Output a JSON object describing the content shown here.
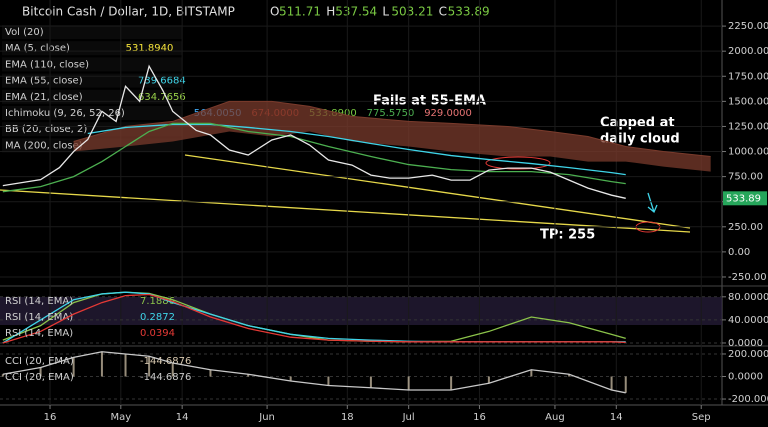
{
  "header": {
    "title": "Bitcoin Cash / Dollar, 1D, BITSTAMP",
    "ohlc": [
      {
        "label": "O",
        "value": 511.71
      },
      {
        "label": "H",
        "value": 537.54
      },
      {
        "label": "L",
        "value": 503.21
      },
      {
        "label": "C",
        "value": 533.89
      }
    ]
  },
  "legend": [
    {
      "label": "Vol (20)",
      "readouts": []
    },
    {
      "label": "MA (5, close)",
      "readouts": [
        {
          "text": "531.8940",
          "color": "#f5e33a"
        }
      ]
    },
    {
      "label": "EMA (110, close)",
      "readouts": []
    },
    {
      "label": "EMA (55, close)",
      "readouts": [
        {
          "text": "739.6684",
          "color": "#3fd4e8"
        }
      ]
    },
    {
      "label": "EMA (21, close)",
      "readouts": [
        {
          "text": "634.7656",
          "color": "#9ad24a"
        }
      ]
    },
    {
      "label": "Ichimoku (9, 26, 52, 26)",
      "readouts": [
        {
          "text": "564.0050",
          "color": "#3fa9f5"
        },
        {
          "text": "674.0000",
          "color": "#c0392b"
        },
        {
          "text": "533.8900",
          "color": "#7ac943"
        },
        {
          "text": "775.5750",
          "color": "#4caf50"
        },
        {
          "text": "929.0000",
          "color": "#e57373"
        }
      ]
    },
    {
      "label": "BB (20, close, 2)",
      "readouts": []
    },
    {
      "label": "MA (200, close)",
      "readouts": []
    }
  ],
  "annotations": [
    "Fails at 55-EMA",
    "Capped at",
    "daily cloud",
    "TP: 255"
  ],
  "chart_data": [
    {
      "type": "line",
      "grid": true,
      "xlim": [
        -10.6,
        142.4
      ],
      "ylim": [
        -330,
        2510
      ],
      "xticks": [
        {
          "value": 0,
          "label": "16"
        },
        {
          "value": 15,
          "label": "May"
        },
        {
          "value": 28,
          "label": "14"
        },
        {
          "value": 46,
          "label": "Jun"
        },
        {
          "value": 63,
          "label": "18"
        },
        {
          "value": 76,
          "label": "Jul"
        },
        {
          "value": 91,
          "label": "16"
        },
        {
          "value": 107,
          "label": "Aug"
        },
        {
          "value": 120,
          "label": "14"
        },
        {
          "value": 138,
          "label": "Sep"
        }
      ],
      "yticks": [
        {
          "value": 2250,
          "label": "2250.00"
        },
        {
          "value": 2000,
          "label": "2000.00"
        },
        {
          "value": 1750,
          "label": "1750.00"
        },
        {
          "value": 1500,
          "label": "1500.00"
        },
        {
          "value": 1250,
          "label": "1250.00"
        },
        {
          "value": 1000,
          "label": "1000.00"
        },
        {
          "value": 750,
          "label": "750.00"
        },
        {
          "value": 500,
          "label": "500.00"
        },
        {
          "value": 250,
          "label": "250.00"
        },
        {
          "value": 0,
          "label": "0.00"
        },
        {
          "value": -250,
          "label": "-250.00"
        }
      ],
      "series": [
        {
          "name": "Ichimoku (9, 26, 52, 26)",
          "color": "#7a3b2c",
          "x": [
            5,
            16,
            26,
            38,
            47,
            55,
            64,
            76,
            85,
            97,
            106,
            114,
            122,
            130,
            140
          ],
          "values": [
            1100,
            1250,
            1300,
            1500,
            1500,
            1450,
            1350,
            1300,
            1280,
            1250,
            1200,
            1150,
            1050,
            1000,
            950
          ],
          "lower": [
            1000,
            1050,
            1100,
            1200,
            1150,
            1200,
            1100,
            1050,
            1000,
            950,
            950,
            900,
            900,
            850,
            800
          ]
        },
        {
          "name": "MA (200, close)",
          "color": "#3fd4e8",
          "x": [
            8,
            16,
            26,
            34,
            42,
            51,
            59,
            68,
            76,
            85,
            93,
            102,
            110,
            119,
            122
          ],
          "values": [
            1180,
            1240,
            1270,
            1270,
            1240,
            1200,
            1150,
            1080,
            1020,
            960,
            920,
            880,
            840,
            790,
            770
          ]
        },
        {
          "name": "EMA (55, close)",
          "color": "#4caf50",
          "x": [
            -10,
            -2,
            5,
            11,
            16,
            21,
            26,
            34,
            42,
            51,
            59,
            68,
            76,
            85,
            93,
            102,
            110,
            119,
            122
          ],
          "values": [
            600,
            650,
            750,
            900,
            1050,
            1200,
            1280,
            1280,
            1200,
            1150,
            1050,
            950,
            870,
            820,
            800,
            800,
            770,
            700,
            680
          ]
        },
        {
          "name": "Bitcoin Cash / Dollar",
          "color": "#e8e8e8",
          "price_tag": true,
          "x": [
            -10,
            -6,
            -2,
            2,
            5,
            8,
            11,
            14,
            16,
            19,
            21,
            24,
            26,
            31,
            34,
            38,
            42,
            47,
            51,
            55,
            59,
            64,
            68,
            72,
            76,
            81,
            85,
            89,
            93,
            97,
            102,
            106,
            110,
            114,
            119,
            122
          ],
          "values": [
            660,
            690,
            720,
            840,
            1000,
            1120,
            1400,
            1300,
            1650,
            1500,
            1850,
            1600,
            1400,
            1210,
            1165,
            1015,
            965,
            1115,
            1165,
            1065,
            915,
            865,
            765,
            735,
            735,
            765,
            715,
            715,
            815,
            835,
            835,
            795,
            715,
            635,
            565,
            533.89
          ]
        }
      ]
    },
    {
      "type": "line",
      "xlim": [
        -10.6,
        142.4
      ],
      "ylim": [
        -3.5,
        97
      ],
      "yticks": [
        {
          "value": 80,
          "label": "80.0000"
        },
        {
          "value": 40,
          "label": "40.0000"
        },
        {
          "value": 0,
          "label": "0.0000"
        }
      ],
      "series": [
        {
          "name": "RSI (14, EMA)",
          "readout": "7.1886",
          "color": "#8bc34a",
          "x": [
            -10,
            -2,
            5,
            11,
            16,
            21,
            26,
            34,
            42,
            51,
            59,
            68,
            76,
            85,
            93,
            102,
            110,
            119,
            122
          ],
          "values": [
            5,
            30,
            70,
            85,
            88,
            86,
            75,
            50,
            30,
            15,
            5,
            3,
            2,
            3,
            20,
            45,
            35,
            15,
            8
          ]
        },
        {
          "name": "RSI (14, EMA)",
          "readout": "0.2872",
          "color": "#3fd4e8",
          "x": [
            -10,
            -2,
            5,
            11,
            16,
            21,
            26,
            34,
            42,
            51,
            59,
            68,
            76,
            85,
            93,
            102,
            110,
            119,
            122
          ],
          "values": [
            0,
            40,
            75,
            85,
            88,
            85,
            70,
            50,
            30,
            15,
            8,
            5,
            3,
            2,
            2,
            2,
            2,
            2,
            2
          ]
        },
        {
          "name": "RSI (14, EMA)",
          "readout": "0.0394",
          "color": "#e53935",
          "x": [
            -10,
            -2,
            5,
            11,
            16,
            21,
            26,
            34,
            42,
            51,
            59,
            68,
            76,
            85,
            93,
            102,
            110,
            119,
            122
          ],
          "values": [
            0,
            20,
            50,
            70,
            82,
            84,
            72,
            45,
            25,
            10,
            5,
            3,
            2,
            2,
            2,
            2,
            2,
            2,
            1
          ]
        }
      ]
    },
    {
      "type": "line",
      "xlim": [
        -10.6,
        142.4
      ],
      "ylim": [
        -253,
        262
      ],
      "yticks": [
        {
          "value": 200,
          "label": "200.0000"
        },
        {
          "value": 0,
          "label": "0.0000"
        },
        {
          "value": -200,
          "label": "-200.0000"
        }
      ],
      "series": [
        {
          "name": "CCI (20, EMA)",
          "readout": "-144.6876",
          "color": "#d8c9b0",
          "histogram": true,
          "x": [
            -10,
            -2,
            5,
            11,
            16,
            21,
            26,
            34,
            42,
            51,
            59,
            68,
            76,
            85,
            93,
            102,
            110,
            119,
            122
          ],
          "values": [
            20,
            80,
            170,
            220,
            200,
            180,
            120,
            60,
            20,
            -40,
            -80,
            -100,
            -120,
            -120,
            -60,
            60,
            20,
            -120,
            -144.6876
          ]
        },
        {
          "name": "CCI (20, EMA)",
          "readout": "-144.6876",
          "color": "#c8c8c8",
          "x": [
            -10,
            -2,
            5,
            11,
            16,
            21,
            26,
            34,
            42,
            51,
            59,
            68,
            76,
            85,
            93,
            102,
            110,
            119,
            122
          ],
          "values": [
            20,
            80,
            170,
            220,
            200,
            180,
            120,
            60,
            20,
            -40,
            -80,
            -100,
            -120,
            -120,
            -60,
            60,
            20,
            -120,
            -144.6876
          ]
        }
      ]
    }
  ]
}
